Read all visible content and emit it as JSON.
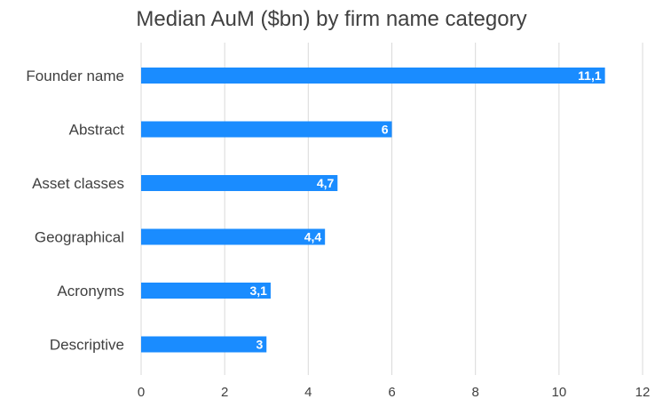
{
  "chart_data": {
    "type": "bar",
    "orientation": "horizontal",
    "title": "Median AuM ($bn) by firm name category",
    "categories": [
      "Founder name",
      "Abstract",
      "Asset classes",
      "Geographical",
      "Acronyms",
      "Descriptive"
    ],
    "values": [
      11.1,
      6,
      4.7,
      4.4,
      3.1,
      3
    ],
    "data_labels": [
      "11,1",
      "6",
      "4,7",
      "4,4",
      "3,1",
      "3"
    ],
    "xlim": [
      0,
      12
    ],
    "x_ticks": [
      "0",
      "2",
      "4",
      "6",
      "8",
      "10",
      "12"
    ],
    "grid": true,
    "bar_color": "#1a8cff",
    "xlabel": "",
    "ylabel": ""
  }
}
